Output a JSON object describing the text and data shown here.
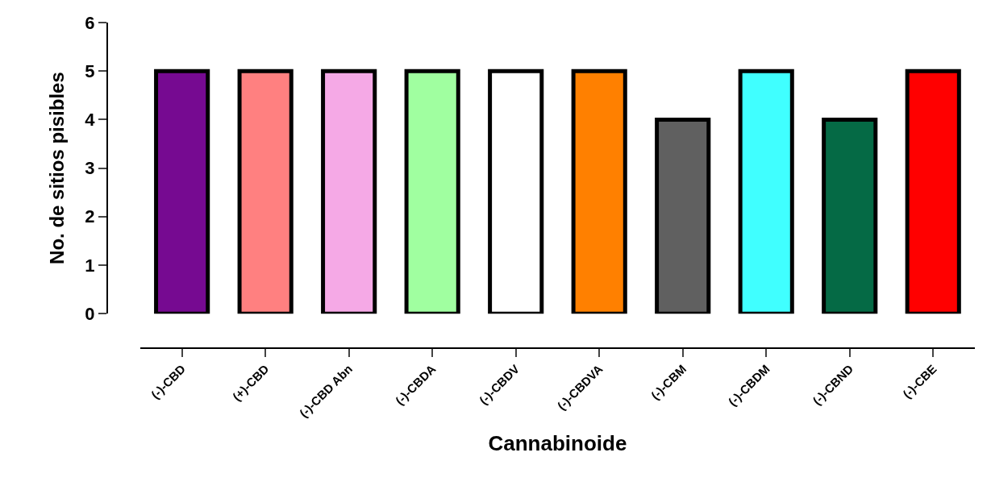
{
  "chart_data": {
    "type": "bar",
    "xlabel": "Cannabinoide",
    "ylabel": "No. de sitios pisibles",
    "categories": [
      "(-)-CBD",
      "(+)-CBD",
      "(-)-CBD Abn",
      "(-)-CBDA",
      "(-)-CBDV",
      "(-)-CBDVA",
      "(-)-CBM",
      "(-)-CBDM",
      "(-)-CBND",
      "(-)-CBE"
    ],
    "values": [
      5,
      5,
      5,
      5,
      5,
      5,
      4,
      5,
      4,
      5
    ],
    "colors": [
      "#760a91",
      "#ff8080",
      "#f5a9e6",
      "#a0ffa0",
      "#ffffff",
      "#ff8000",
      "#606060",
      "#40ffff",
      "#056a45",
      "#ff0000"
    ],
    "ylim": [
      0,
      6
    ],
    "yticks": [
      0,
      1,
      2,
      3,
      4,
      5,
      6
    ]
  }
}
